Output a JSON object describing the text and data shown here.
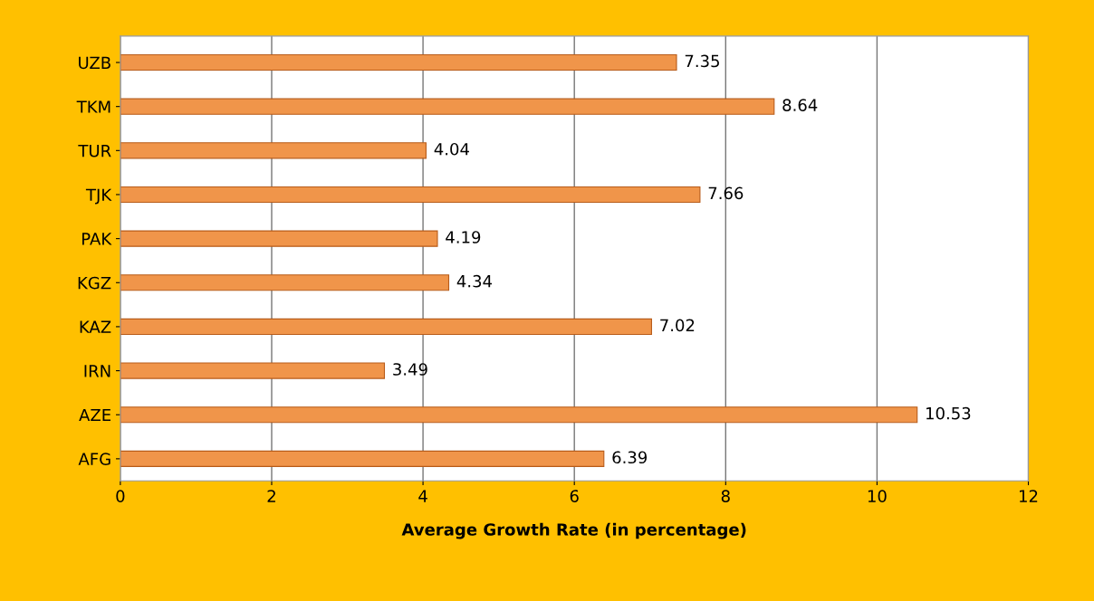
{
  "chart_data": {
    "type": "bar",
    "orientation": "horizontal",
    "categories": [
      "UZB",
      "TKM",
      "TUR",
      "TJK",
      "PAK",
      "KGZ",
      "KAZ",
      "IRN",
      "AZE",
      "AFG"
    ],
    "values": [
      7.35,
      8.64,
      4.04,
      7.66,
      4.19,
      4.34,
      7.02,
      3.49,
      10.53,
      6.39
    ],
    "color": "#f0954a",
    "xlabel": "Average Growth Rate (in percentage)",
    "xlim": [
      0,
      12
    ],
    "xticks": [
      0,
      2,
      4,
      6,
      8,
      10,
      12
    ],
    "grid": "x",
    "data_labels": true
  }
}
